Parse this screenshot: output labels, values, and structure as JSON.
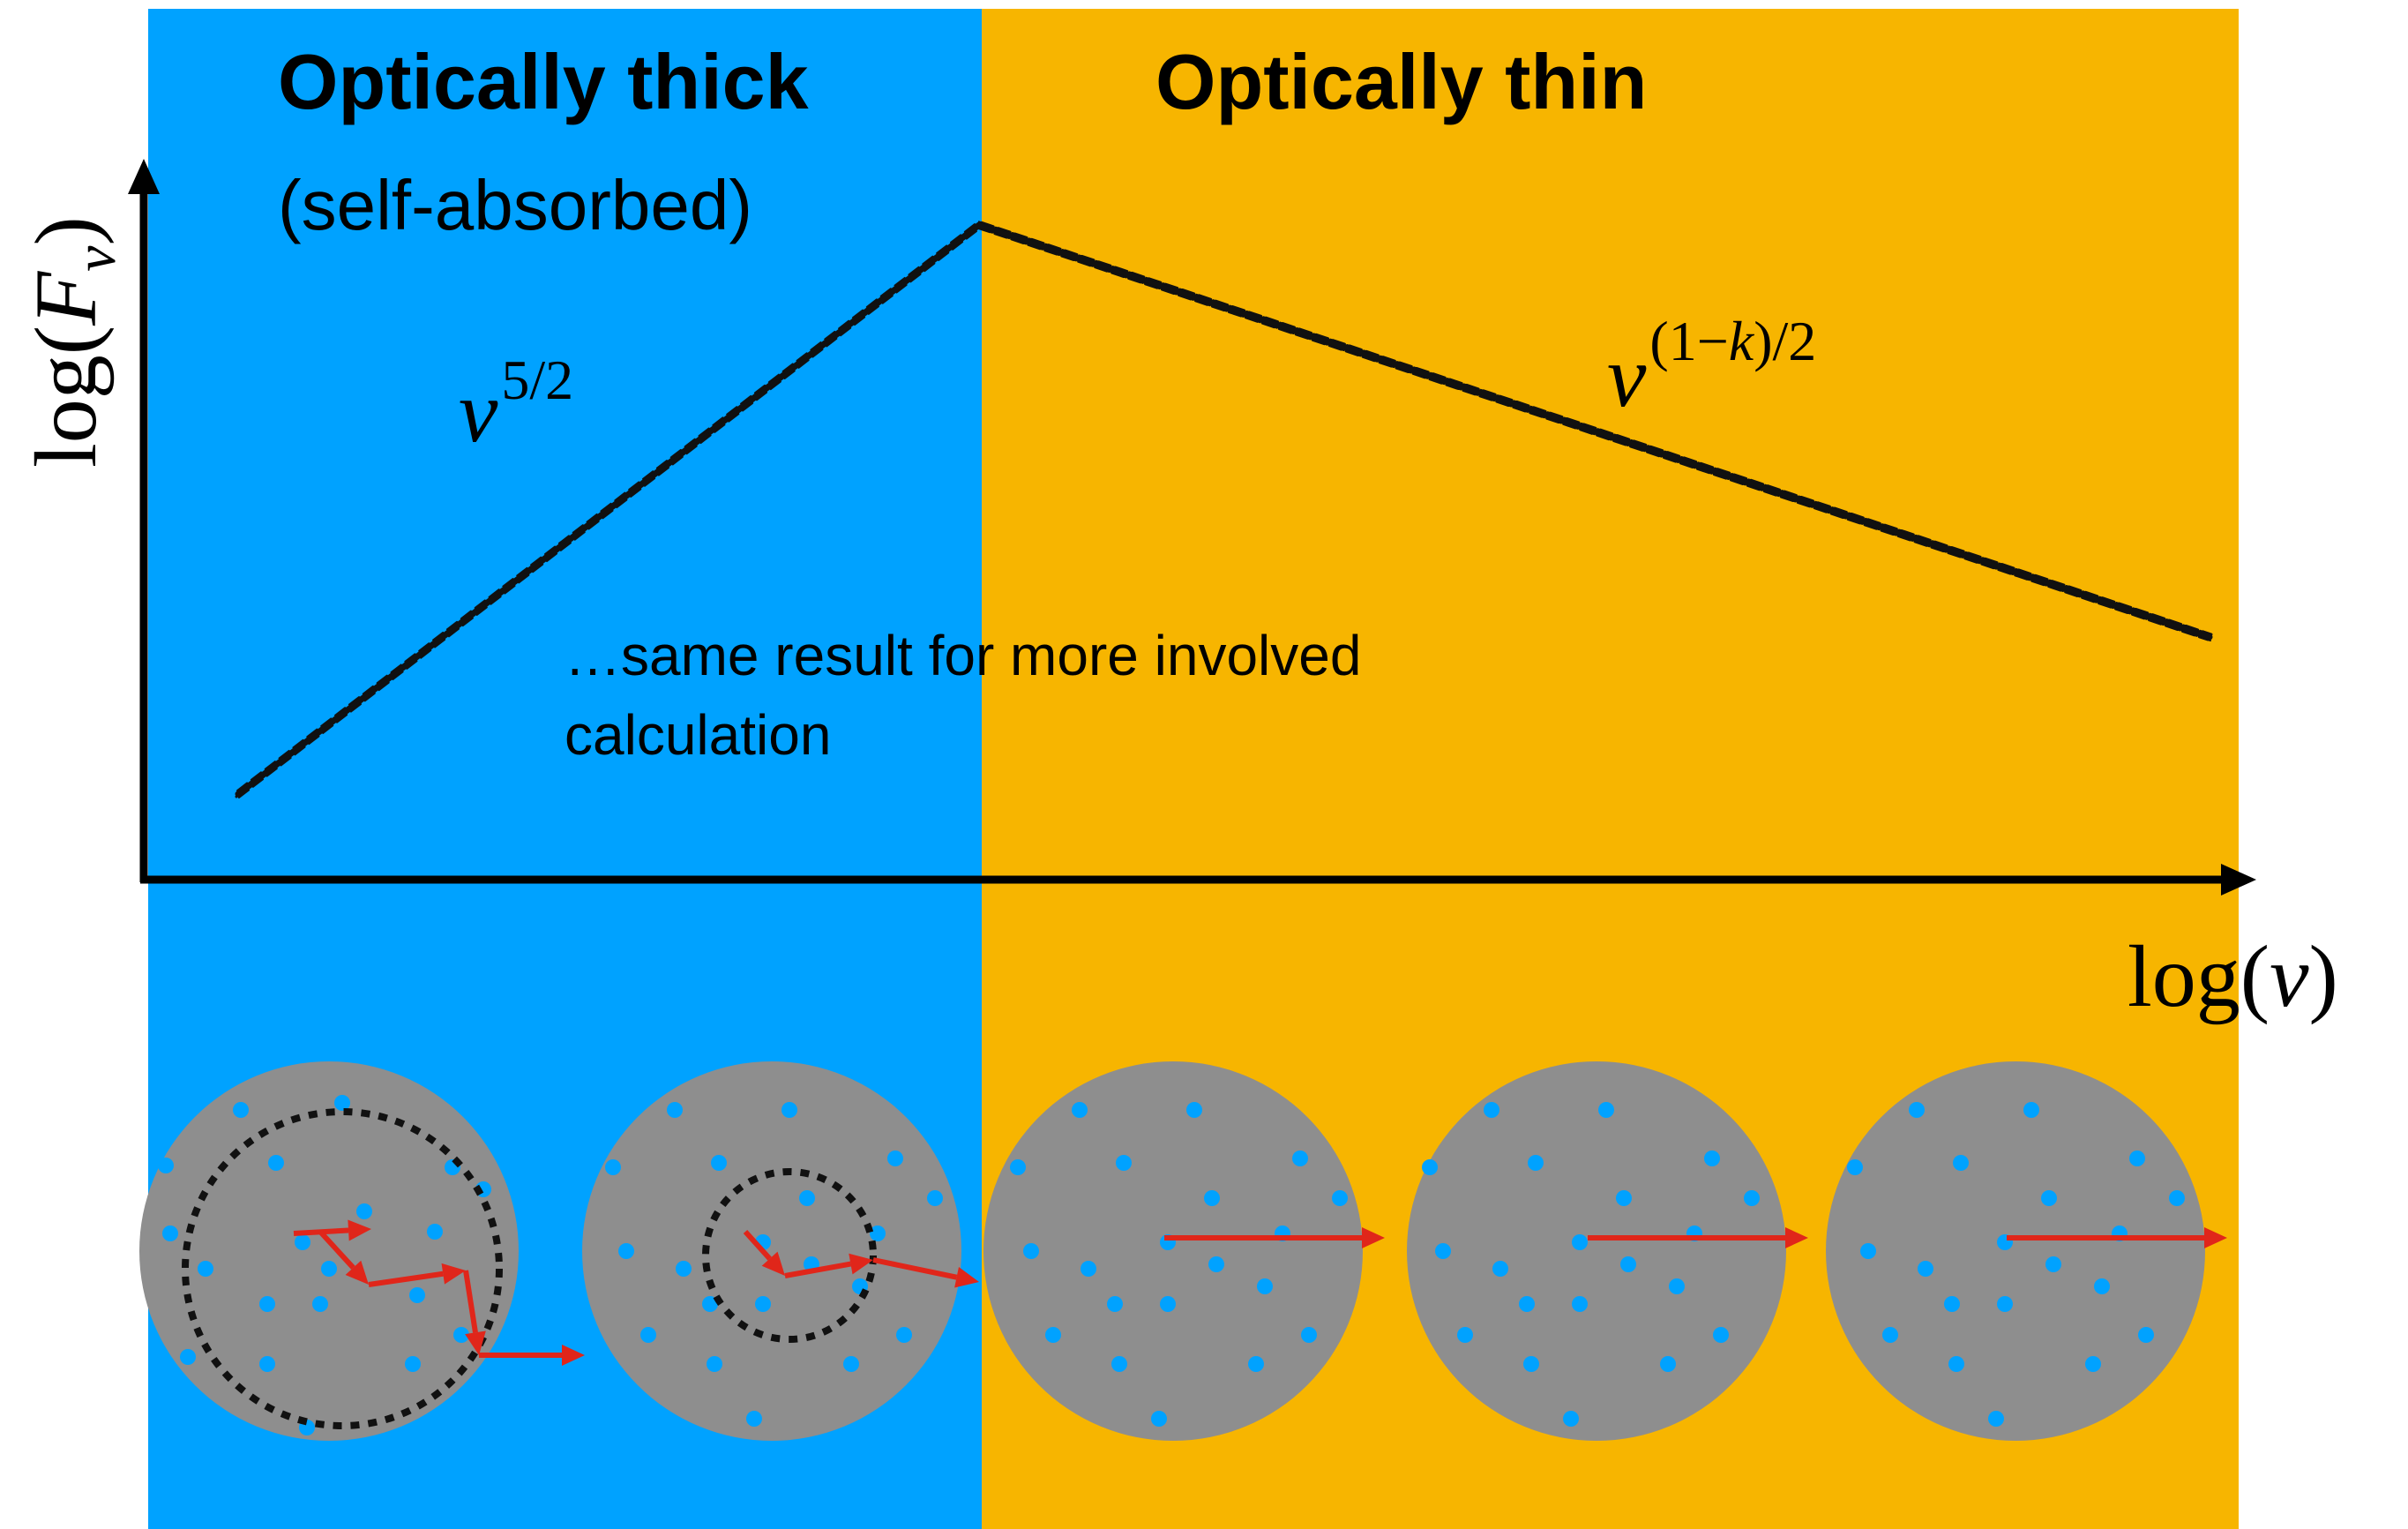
{
  "colors": {
    "thick_bg": "#00a2ff",
    "thin_bg": "#f7b500",
    "sphere": "#8e8e8e",
    "particle": "#00a2ff",
    "photon_path": "#e0261a",
    "curve": "#111111",
    "axis": "#000000"
  },
  "regions": {
    "thick": {
      "title": "Optically thick",
      "subtitle": "(self-absorbed)"
    },
    "thin": {
      "title": "Optically thin"
    }
  },
  "axes": {
    "y_label": {
      "base": "log(",
      "var": "F",
      "sub": "ν",
      "close": ")"
    },
    "x_label": {
      "base": "log(",
      "var": "ν",
      "close": ")"
    }
  },
  "spectrum": {
    "rise_slope": {
      "base": "ν",
      "exp": "5/2"
    },
    "decline_slope": {
      "base": "ν",
      "exp_parts": [
        "(1",
        "−",
        "k",
        ")/2"
      ]
    }
  },
  "annotation": {
    "line1": "…same result for more involved",
    "line2": "calculation"
  },
  "icons": {
    "spheres": "gas-sphere-icon",
    "photon": "photon-path-arrow-icon",
    "photosphere": "photosphere-dashed-ring-icon"
  }
}
